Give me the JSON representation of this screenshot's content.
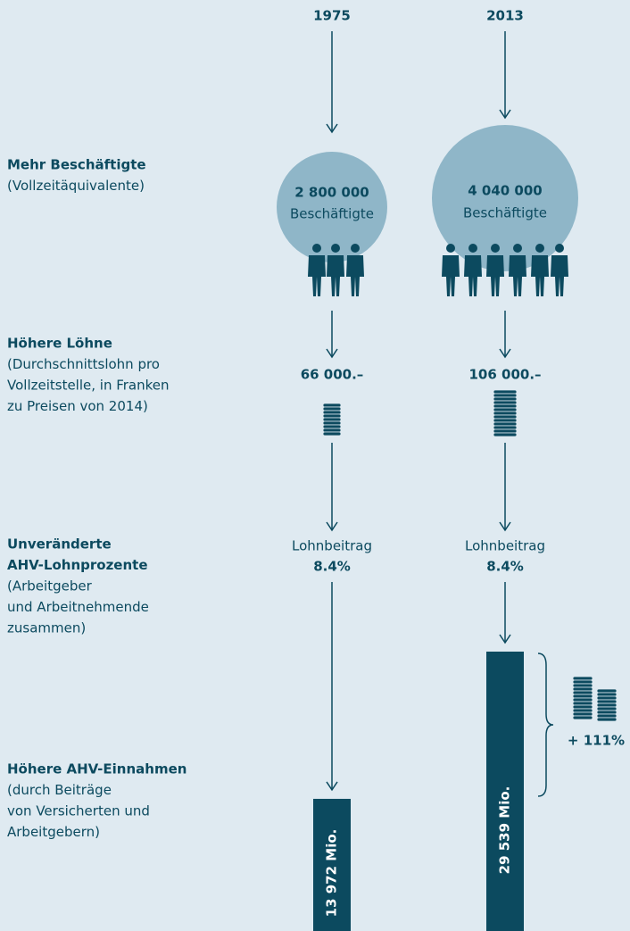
{
  "sections": [
    {
      "title": [
        "Mehr Beschäftigte"
      ],
      "lines": [
        "(Vollzeitäquivalente)"
      ]
    },
    {
      "title": [
        "Höhere Löhne"
      ],
      "lines": [
        "(Durchschnittslohn pro",
        "Vollzeitstelle, in Franken",
        "zu Preisen von 2014)"
      ]
    },
    {
      "title": [
        "Unveränderte",
        "AHV-Lohnprozente"
      ],
      "lines": [
        "(Arbeitgeber",
        "und Arbeitnehmende",
        "zusammen)"
      ]
    },
    {
      "title": [
        "Höhere AHV-Einnahmen"
      ],
      "lines": [
        "(durch Beiträge",
        "von Versicherten und",
        "Arbeitgebern)"
      ]
    }
  ],
  "columns": [
    {
      "year": "1975",
      "employees": "2 800 000",
      "employees_unit": "Beschäftigte",
      "salary": "66 000.–",
      "contribution_label": "Lohnbeitrag",
      "contribution_rate": "8.4%",
      "revenue": {
        "value": 13972,
        "label": "13 972 Mio."
      }
    },
    {
      "year": "2013",
      "employees": "4 040 000",
      "employees_unit": "Beschäftigte",
      "salary": "106 000.–",
      "contribution_label": "Lohnbeitrag",
      "contribution_rate": "8.4%",
      "revenue": {
        "value": 29539,
        "label": "29 539 Mio."
      }
    }
  ],
  "growth": "+ 111%"
}
